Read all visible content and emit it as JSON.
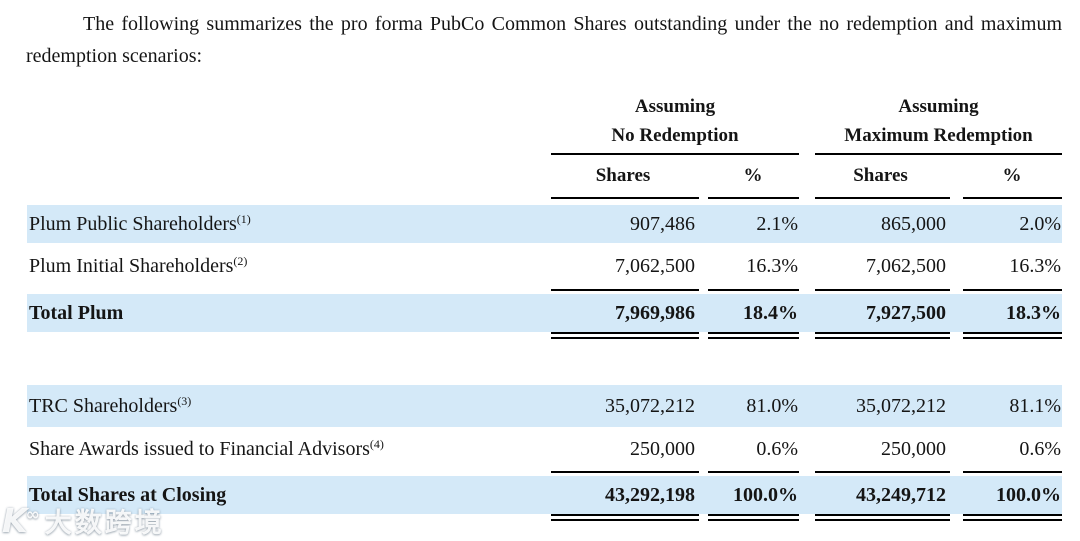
{
  "intro": "The following summarizes the pro forma PubCo Common Shares outstanding under the no redemption and maximum redemption scenarios:",
  "table": {
    "groups": [
      {
        "line1": "Assuming",
        "line2": "No Redemption"
      },
      {
        "line1": "Assuming",
        "line2": "Maximum Redemption"
      }
    ],
    "columns": [
      "Shares",
      "%",
      "Shares",
      "%"
    ],
    "rows": [
      {
        "label": "Plum Public Shareholders",
        "note": "(1)",
        "values": [
          "907,486",
          "2.1%",
          "865,000",
          "2.0%"
        ]
      },
      {
        "label": "Plum Initial Shareholders",
        "note": "(2)",
        "values": [
          "7,062,500",
          "16.3%",
          "7,062,500",
          "16.3%"
        ]
      },
      {
        "label": "Total Plum",
        "note": "",
        "values": [
          "7,969,986",
          "18.4%",
          "7,927,500",
          "18.3%"
        ]
      },
      {
        "label": "TRC Shareholders",
        "note": "(3)",
        "values": [
          "35,072,212",
          "81.0%",
          "35,072,212",
          "81.1%"
        ]
      },
      {
        "label": "Share Awards issued to Financial Advisors",
        "note": "(4)",
        "values": [
          "250,000",
          "0.6%",
          "250,000",
          "0.6%"
        ]
      },
      {
        "label": "Total Shares at Closing",
        "note": "",
        "values": [
          "43,292,198",
          "100.0%",
          "43,249,712",
          "100.0%"
        ]
      }
    ]
  },
  "watermark": {
    "logo": "K∞",
    "text": "大数跨境"
  },
  "colors": {
    "row_highlight": "#d4e9f8",
    "text": "#151515",
    "rule": "#000000"
  }
}
